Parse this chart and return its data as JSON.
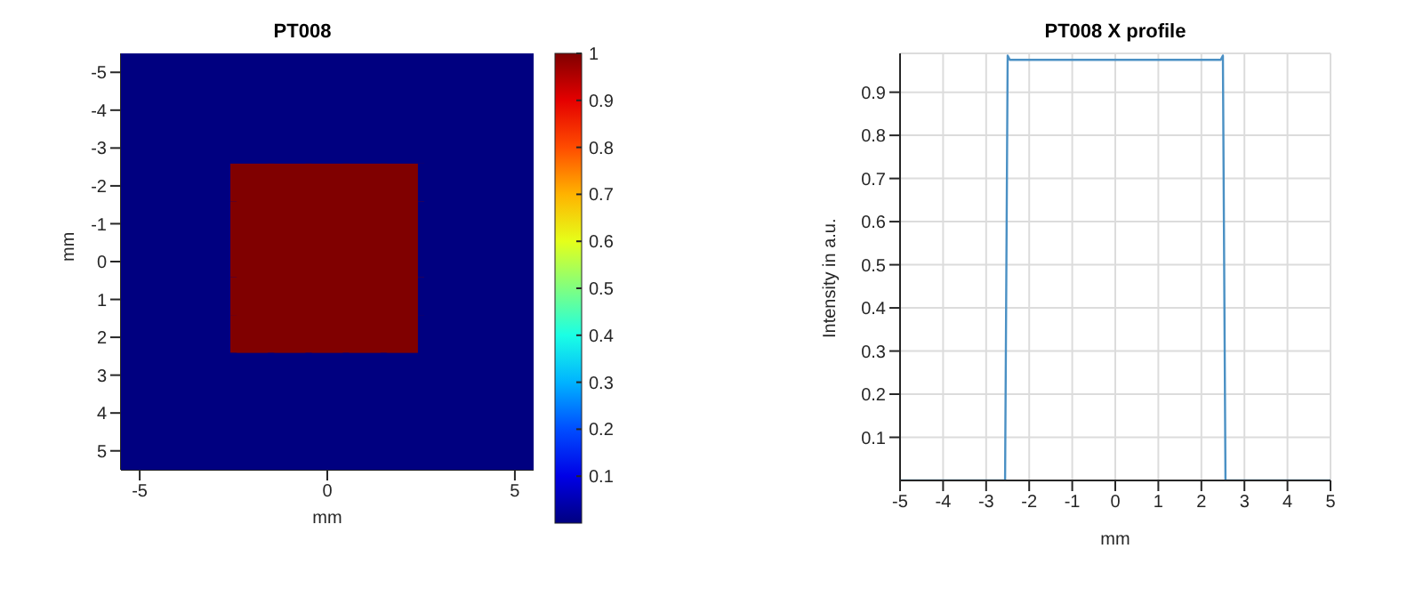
{
  "chart_data": [
    {
      "type": "heatmap",
      "title": "PT008",
      "xlabel": "mm",
      "ylabel": "mm",
      "categories": [
        "-5",
        null,
        null,
        null,
        null,
        "0",
        null,
        null,
        null,
        null,
        "5"
      ],
      "y_categories": [
        "-5",
        "-4",
        "-3",
        "-2",
        "-1",
        "0",
        "1",
        "2",
        "3",
        "4",
        "5"
      ],
      "cells": [
        [
          0,
          0,
          0,
          0,
          0,
          0,
          0,
          0,
          0,
          0,
          0
        ],
        [
          0,
          0,
          0,
          0,
          0,
          0,
          0,
          0,
          0,
          0,
          0
        ],
        [
          0,
          0,
          0,
          0,
          0,
          0,
          0,
          0,
          0,
          0,
          0
        ],
        [
          0,
          0,
          0,
          1,
          1,
          1,
          1,
          1,
          0,
          0,
          0
        ],
        [
          0,
          0,
          0,
          1,
          1,
          1,
          1,
          1,
          0,
          0,
          0
        ],
        [
          0,
          0,
          0,
          1,
          1,
          1,
          1,
          1,
          0,
          0,
          0
        ],
        [
          0,
          0,
          0,
          1,
          1,
          1,
          1,
          1,
          0,
          0,
          0
        ],
        [
          0,
          0,
          0,
          1,
          1,
          1,
          1,
          1,
          0,
          0,
          0
        ],
        [
          0,
          0,
          0,
          0,
          0,
          0,
          0,
          0,
          0,
          0,
          0
        ],
        [
          0,
          0,
          0,
          0,
          0,
          0,
          0,
          0,
          0,
          0,
          0
        ],
        [
          0,
          0,
          0,
          0,
          0,
          0,
          0,
          0,
          0,
          0,
          0
        ]
      ],
      "clim": [
        0,
        1
      ],
      "cticks": [
        0.1,
        0.2,
        0.3,
        0.4,
        0.5,
        0.6,
        0.7,
        0.8,
        0.9,
        1
      ]
    },
    {
      "type": "line",
      "title": "PT008 X profile",
      "xlabel": "mm",
      "ylabel": "Intensity in a.u.",
      "x": [
        -5,
        -2.56,
        -2.5,
        -2.45,
        2.45,
        2.5,
        2.56,
        5
      ],
      "series": [
        {
          "color": "#4a90c4",
          "values": [
            0,
            0,
            0.985,
            0.975,
            0.975,
            0.985,
            0,
            0
          ]
        }
      ],
      "xlim": [
        -5,
        5
      ],
      "xticks": [
        -5,
        -4,
        -3,
        -2,
        -1,
        0,
        1,
        2,
        3,
        4,
        5
      ],
      "ylim": [
        0,
        0.99
      ],
      "yticks": [
        0.1,
        0.2,
        0.3,
        0.4,
        0.5,
        0.6,
        0.7,
        0.8,
        0.9
      ],
      "grid": true,
      "marker": "none",
      "line_style": "solid"
    }
  ]
}
